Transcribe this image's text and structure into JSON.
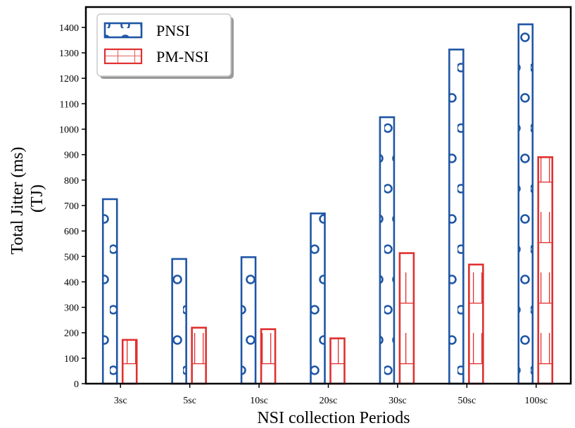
{
  "chart_data": {
    "type": "bar",
    "categories": [
      "3sc",
      "5sc",
      "10sc",
      "20sc",
      "30sc",
      "50sc",
      "100sc"
    ],
    "series": [
      {
        "name": "PNSI",
        "values": [
          725,
          490,
          497,
          669,
          1047,
          1313,
          1412
        ],
        "color": "#1f56a5",
        "pattern": "circles"
      },
      {
        "name": "PM-NSI",
        "values": [
          172,
          220,
          214,
          178,
          513,
          468,
          890
        ],
        "color": "#e03030",
        "pattern": "grid"
      }
    ],
    "xlabel": "NSI collection Periods",
    "ylabel_lines": [
      "Total Jitter (ms)",
      "(TJ)"
    ],
    "ylim": [
      0,
      1480
    ],
    "yticks": [
      0,
      100,
      200,
      300,
      400,
      500,
      600,
      700,
      800,
      900,
      1000,
      1100,
      1200,
      1300,
      1400
    ],
    "legend_position": "top-left",
    "grid": false
  }
}
